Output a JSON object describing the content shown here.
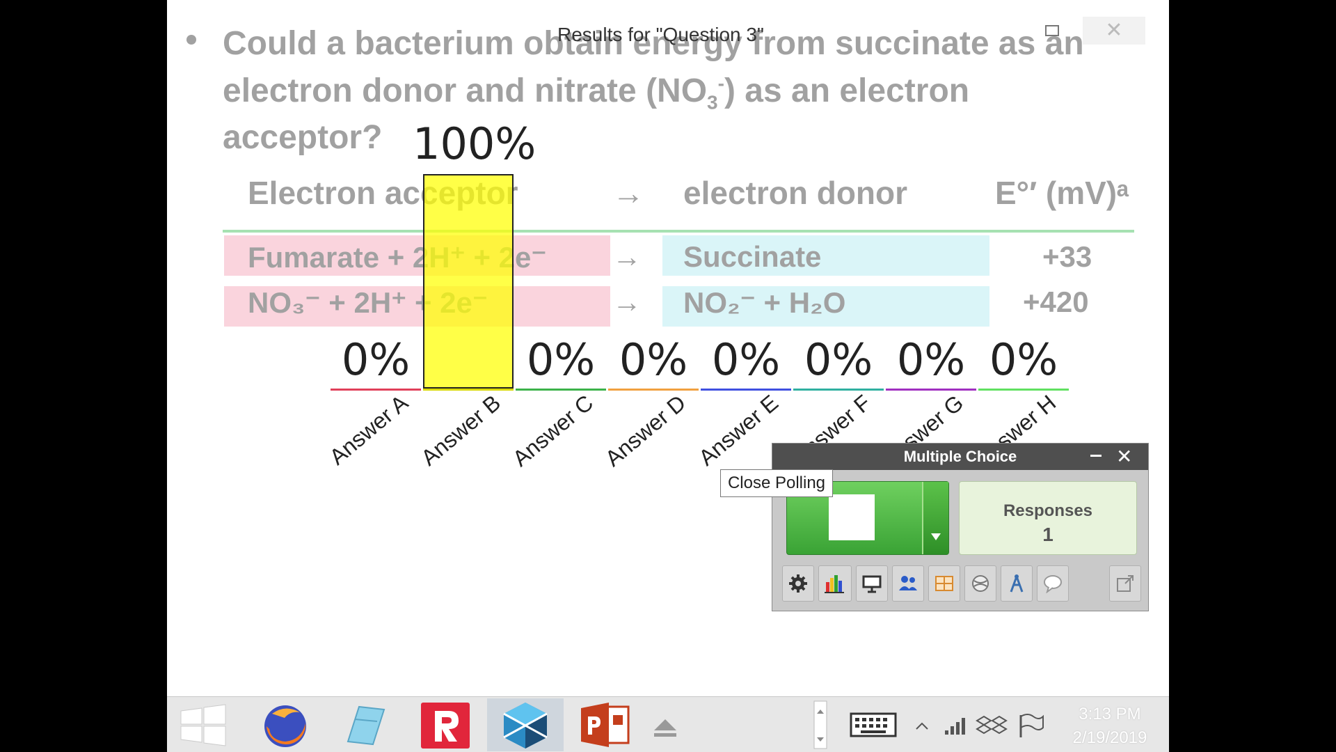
{
  "window": {
    "title": "Results for \"Question 3\"",
    "close_glyph": "✕"
  },
  "slide": {
    "question_line1": "Could a bacterium obtain energy from succinate as an",
    "question_line2_pre": "electron donor and nitrate (NO",
    "question_line2_sub": "3",
    "question_line2_sup": "-",
    "question_line2_post": ") as an electron",
    "question_line3": "acceptor?",
    "header_acceptor": "Electron acceptor",
    "header_arrow": "→",
    "header_donor": "electron donor",
    "header_potential": "E°′ (mV)ᵃ",
    "row1_acceptor": "Fumarate + 2H⁺ + 2e⁻",
    "row1_arrow": "→",
    "row1_donor": "Succinate",
    "row1_value": "+33",
    "row2_acceptor": "NO₃⁻ + 2H⁺ + 2e⁻",
    "row2_arrow": "→",
    "row2_donor": "NO₂⁻ + H₂O",
    "row2_value": "+420"
  },
  "chart_data": {
    "type": "bar",
    "categories": [
      "Answer A",
      "Answer B",
      "Answer C",
      "Answer D",
      "Answer E",
      "Answer F",
      "Answer G",
      "Answer H"
    ],
    "values": [
      0,
      100,
      0,
      0,
      0,
      0,
      0,
      0
    ],
    "value_labels": [
      "0%",
      "100%",
      "0%",
      "0%",
      "0%",
      "0%",
      "0%",
      "0%"
    ],
    "category_colors": [
      "#e0405a",
      "#d9d900",
      "#3cb24a",
      "#f0a040",
      "#4050e0",
      "#30b0a0",
      "#a030c0",
      "#60e060"
    ],
    "ylim": [
      0,
      100
    ]
  },
  "poll": {
    "title": "Multiple Choice",
    "minimize_glyph": "_",
    "close_glyph": "✕",
    "responses_label": "Responses",
    "responses_count": "1",
    "tooltip": "Close Polling",
    "toolbar_icons": [
      "gear-icon",
      "bar-chart-icon",
      "presentation-icon",
      "participants-icon",
      "grid-icon",
      "sports-icon",
      "antenna-icon",
      "speech-bubble-icon",
      "export-icon"
    ]
  },
  "taskbar": {
    "time": "3:13 PM",
    "date": "2/19/2019"
  }
}
